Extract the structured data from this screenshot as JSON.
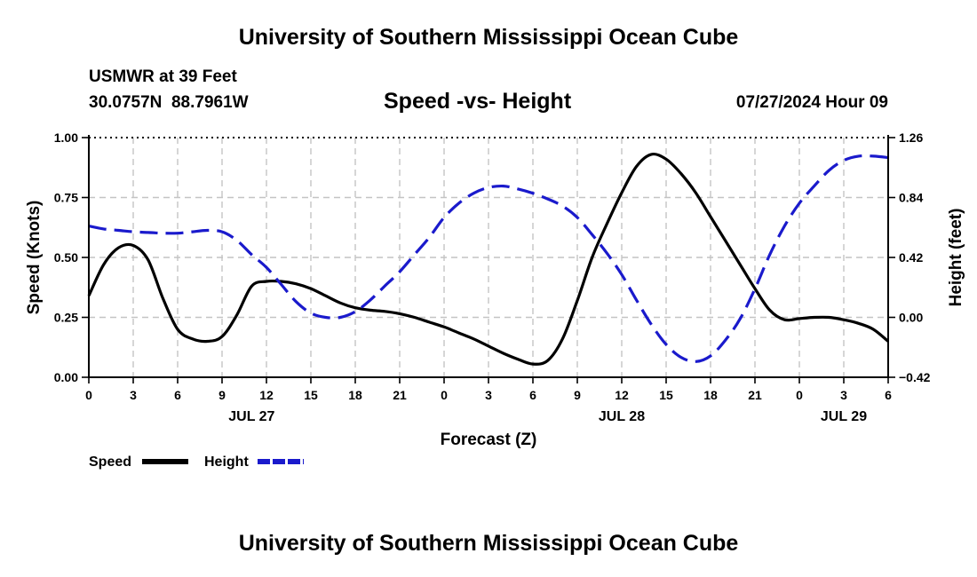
{
  "page_title": "University of Southern Mississippi Ocean Cube",
  "footer_title": "University of Southern Mississippi Ocean Cube",
  "station": {
    "name": "USMWR at 39 Feet",
    "coords": "30.0757N  88.7961W",
    "datetime": "07/27/2024 Hour 09"
  },
  "chart_data": {
    "type": "line",
    "title": "Speed -vs- Height",
    "xlabel": "Forecast (Z)",
    "ylabel": "Speed (Knots)",
    "y2label": "Height (feet)",
    "x_range_hours": [
      0,
      54
    ],
    "x_ticks": {
      "hours": [
        0,
        3,
        6,
        9,
        12,
        15,
        18,
        21,
        24,
        27,
        30,
        33,
        36,
        39,
        42,
        45,
        48,
        51,
        54
      ],
      "labels": [
        "0",
        "3",
        "6",
        "9",
        "12",
        "15",
        "18",
        "21",
        "0",
        "3",
        "6",
        "9",
        "12",
        "15",
        "18",
        "21",
        "0",
        "3",
        "6"
      ]
    },
    "date_labels": [
      {
        "hour": 11,
        "label": "JUL 27"
      },
      {
        "hour": 36,
        "label": "JUL 28"
      },
      {
        "hour": 51,
        "label": "JUL 29"
      }
    ],
    "ylim": [
      0,
      1
    ],
    "y_ticks": [
      0.0,
      0.25,
      0.5,
      0.75,
      1.0
    ],
    "y_tick_labels": [
      "0.00",
      "0.25",
      "0.50",
      "0.75",
      "1.00"
    ],
    "y2lim": [
      -0.42,
      1.26
    ],
    "y2_ticks": [
      -0.42,
      0.0,
      0.42,
      0.84,
      1.26
    ],
    "y2_tick_labels": [
      "−0.42",
      "0.00",
      "0.42",
      "0.84",
      "1.26"
    ],
    "grid": true,
    "series": [
      {
        "name": "Speed",
        "axis": "left",
        "color": "#000000",
        "style": "solid",
        "x": [
          0,
          1,
          2,
          3,
          4,
          5,
          6,
          7,
          8,
          9,
          10,
          11,
          12,
          13,
          14,
          15,
          16,
          17,
          18,
          19,
          20,
          21,
          22,
          23,
          24,
          25,
          26,
          27,
          28,
          29,
          30,
          31,
          32,
          33,
          34,
          35,
          36,
          37,
          38,
          39,
          40,
          41,
          42,
          43,
          44,
          45,
          46,
          47,
          48,
          49,
          50,
          51,
          52,
          53,
          54
        ],
        "values": [
          0.34,
          0.47,
          0.54,
          0.55,
          0.49,
          0.33,
          0.2,
          0.16,
          0.15,
          0.17,
          0.26,
          0.38,
          0.4,
          0.4,
          0.39,
          0.37,
          0.34,
          0.31,
          0.29,
          0.28,
          0.275,
          0.265,
          0.25,
          0.23,
          0.21,
          0.185,
          0.16,
          0.13,
          0.1,
          0.075,
          0.055,
          0.07,
          0.16,
          0.32,
          0.5,
          0.64,
          0.77,
          0.88,
          0.93,
          0.91,
          0.85,
          0.77,
          0.67,
          0.57,
          0.47,
          0.37,
          0.28,
          0.24,
          0.245,
          0.25,
          0.25,
          0.24,
          0.225,
          0.2,
          0.15
        ]
      },
      {
        "name": "Height",
        "axis": "right",
        "color": "#1a1acc",
        "style": "dashed",
        "x": [
          0,
          1,
          2,
          3,
          4,
          5,
          6,
          7,
          8,
          9,
          10,
          11,
          12,
          13,
          14,
          15,
          16,
          17,
          18,
          19,
          20,
          21,
          22,
          23,
          24,
          25,
          26,
          27,
          28,
          29,
          30,
          31,
          32,
          33,
          34,
          35,
          36,
          37,
          38,
          39,
          40,
          41,
          42,
          43,
          44,
          45,
          46,
          47,
          48,
          49,
          50,
          51,
          52,
          53,
          54
        ],
        "values": [
          0.64,
          0.62,
          0.61,
          0.6,
          0.595,
          0.59,
          0.59,
          0.6,
          0.61,
          0.6,
          0.54,
          0.44,
          0.35,
          0.23,
          0.11,
          0.03,
          0.0,
          0.0,
          0.04,
          0.12,
          0.22,
          0.32,
          0.44,
          0.56,
          0.7,
          0.8,
          0.87,
          0.91,
          0.92,
          0.9,
          0.87,
          0.83,
          0.78,
          0.7,
          0.58,
          0.45,
          0.3,
          0.12,
          -0.05,
          -0.19,
          -0.28,
          -0.31,
          -0.27,
          -0.16,
          -0.01,
          0.2,
          0.44,
          0.64,
          0.8,
          0.92,
          1.03,
          1.1,
          1.13,
          1.13,
          1.12
        ]
      }
    ],
    "legend": {
      "position": "bottom-left",
      "items": [
        {
          "label": "Speed",
          "color": "#000000",
          "style": "solid"
        },
        {
          "label": "Height",
          "color": "#1a1acc",
          "style": "dashed"
        }
      ]
    }
  }
}
